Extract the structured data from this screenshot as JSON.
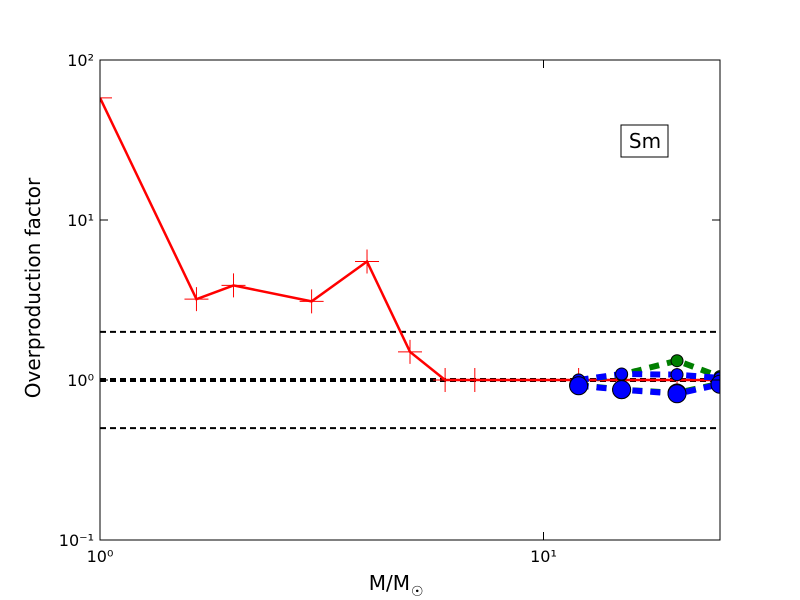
{
  "chart_data": {
    "type": "line",
    "ylabel": "Overproduction factor",
    "xlabel": "M/M",
    "xlabel_sub": "☉",
    "annotation": "Sm",
    "xscale": "log",
    "yscale": "log",
    "xlim": [
      1,
      25
    ],
    "ylim": [
      0.1,
      100
    ],
    "xticks": [
      {
        "value": 1,
        "label": "10⁰"
      },
      {
        "value": 10,
        "label": "10¹"
      }
    ],
    "yticks": [
      {
        "value": 0.1,
        "label": "10⁻¹"
      },
      {
        "value": 1,
        "label": "10⁰"
      },
      {
        "value": 10,
        "label": "10¹"
      },
      {
        "value": 100,
        "label": "10²"
      }
    ],
    "reference_lines": [
      0.5,
      1,
      2
    ],
    "series": [
      {
        "color": "#ff0000",
        "linestyle": "solid",
        "marker": "plus",
        "x": [
          1,
          1.65,
          2,
          3,
          4,
          5,
          6,
          7,
          12,
          15,
          20,
          25
        ],
        "values": [
          58,
          3.2,
          3.9,
          3.1,
          5.5,
          1.5,
          1.0,
          1.0,
          1.0,
          1.0,
          1.0,
          1.0
        ]
      },
      {
        "color": "#007f00",
        "linestyle": "dashed",
        "marker": "circle",
        "x": [
          12,
          15,
          20,
          25
        ],
        "values": [
          1.0,
          1.08,
          1.32,
          1.05
        ]
      },
      {
        "color": "#007f00",
        "linestyle": "dashed",
        "marker": "circle",
        "x": [
          12,
          15,
          20,
          25
        ],
        "values": [
          0.93,
          0.87,
          0.83,
          0.95
        ]
      },
      {
        "color": "#0000ff",
        "linestyle": "dashed",
        "marker": "circle",
        "x": [
          12,
          15,
          20,
          25
        ],
        "values": [
          1.0,
          1.09,
          1.08,
          1.03
        ]
      },
      {
        "color": "#0000ff",
        "linestyle": "dashed",
        "marker": "circle",
        "x": [
          12,
          15,
          20,
          25
        ],
        "values": [
          0.92,
          0.87,
          0.82,
          0.94
        ]
      }
    ]
  }
}
